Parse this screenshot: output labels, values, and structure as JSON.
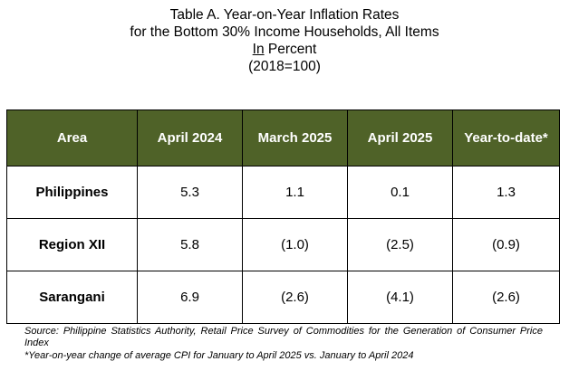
{
  "title": {
    "line1": "Table A. Year-on-Year Inflation Rates",
    "line2": "for the Bottom 30% Income Households, All Items",
    "unit_prefix": "In",
    "unit_rest": " Percent",
    "base": "(2018=100)"
  },
  "chart_data": {
    "type": "table",
    "columns": [
      "Area",
      "April 2024",
      "March 2025",
      "April 2025",
      "Year-to-date*"
    ],
    "rows": [
      [
        "Philippines",
        "5.3",
        "1.1",
        "0.1",
        "1.3"
      ],
      [
        "Region XII",
        "5.8",
        "(1.0)",
        "(2.5)",
        "(0.9)"
      ],
      [
        "Sarangani",
        "6.9",
        "(2.6)",
        "(4.1)",
        "(2.6)"
      ]
    ],
    "values": {
      "Philippines": [
        5.3,
        1.1,
        0.1,
        1.3
      ],
      "Region XII": [
        5.8,
        -1.0,
        -2.5,
        -0.9
      ],
      "Sarangani": [
        6.9,
        -2.6,
        -4.1,
        -2.6
      ]
    },
    "header_color": "#4f6228"
  },
  "notes": {
    "source": "Source:  Philippine Statistics Authority, Retail Price Survey of Commodities for the Generation of Consumer Price Index",
    "footnote": "*Year-on-year change of average CPI for January to April 2025 vs. January to April 2024"
  }
}
